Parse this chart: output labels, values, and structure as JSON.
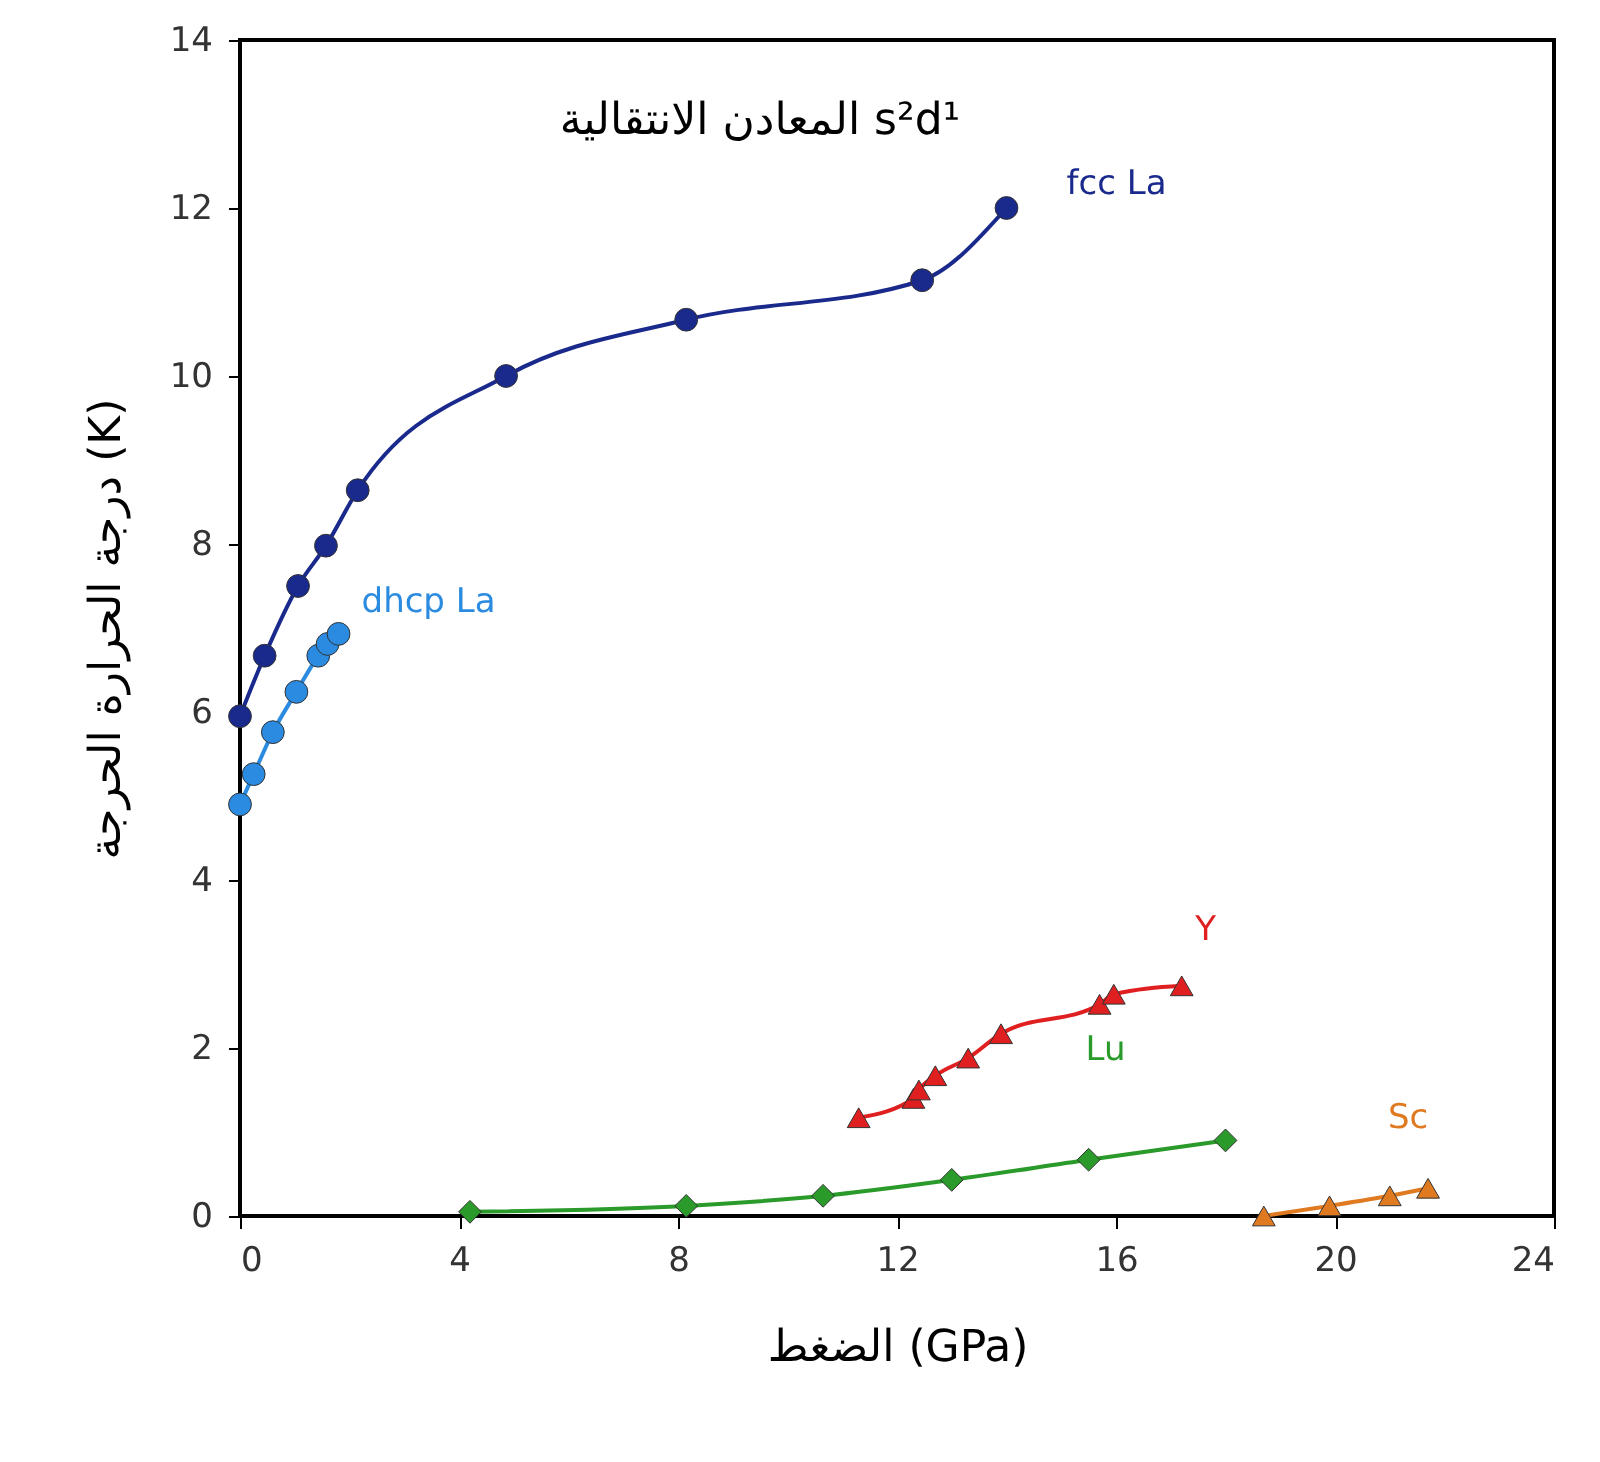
{
  "chart_data": {
    "type": "line",
    "title": "المعادن الانتقالية s²d¹",
    "xlabel": "الضغط (GPa)",
    "ylabel": "درجة الحرارة الحرجة (K)",
    "xlim": [
      0,
      24
    ],
    "ylim": [
      0,
      14
    ],
    "xticks": [
      0,
      4,
      8,
      12,
      16,
      20,
      24
    ],
    "yticks": [
      0,
      2,
      4,
      6,
      8,
      10,
      12,
      14
    ],
    "grid": false,
    "series": [
      {
        "name": "fcc La",
        "color": "#1a2a8c",
        "marker": "circle",
        "x": [
          0,
          0.45,
          1.06,
          1.57,
          2.15,
          4.86,
          8.15,
          12.46,
          14.0
        ],
        "values": [
          5.95,
          6.67,
          7.5,
          7.98,
          8.64,
          10.0,
          10.67,
          11.14,
          12.0
        ]
      },
      {
        "name": "dhcp La",
        "color": "#2a8be0",
        "marker": "circle",
        "x": [
          0,
          0.25,
          0.6,
          1.03,
          1.43,
          1.6,
          1.8
        ],
        "values": [
          4.9,
          5.26,
          5.76,
          6.24,
          6.67,
          6.81,
          6.93
        ]
      },
      {
        "name": "Y",
        "color": "#e02020",
        "marker": "triangle",
        "x": [
          11.3,
          12.3,
          12.4,
          12.7,
          13.3,
          13.9,
          15.7,
          15.96,
          17.2
        ],
        "values": [
          1.17,
          1.4,
          1.5,
          1.67,
          1.88,
          2.17,
          2.52,
          2.64,
          2.74
        ]
      },
      {
        "name": "Lu",
        "color": "#2a9a2a",
        "marker": "diamond",
        "x": [
          4.2,
          8.15,
          10.65,
          13.0,
          15.5,
          18.0
        ],
        "values": [
          0.05,
          0.12,
          0.24,
          0.43,
          0.67,
          0.9
        ]
      },
      {
        "name": "Sc",
        "color": "#e07a20",
        "marker": "triangle",
        "x": [
          18.7,
          19.9,
          21.0,
          21.7
        ],
        "values": [
          0,
          0.12,
          0.24,
          0.33
        ]
      }
    ]
  }
}
